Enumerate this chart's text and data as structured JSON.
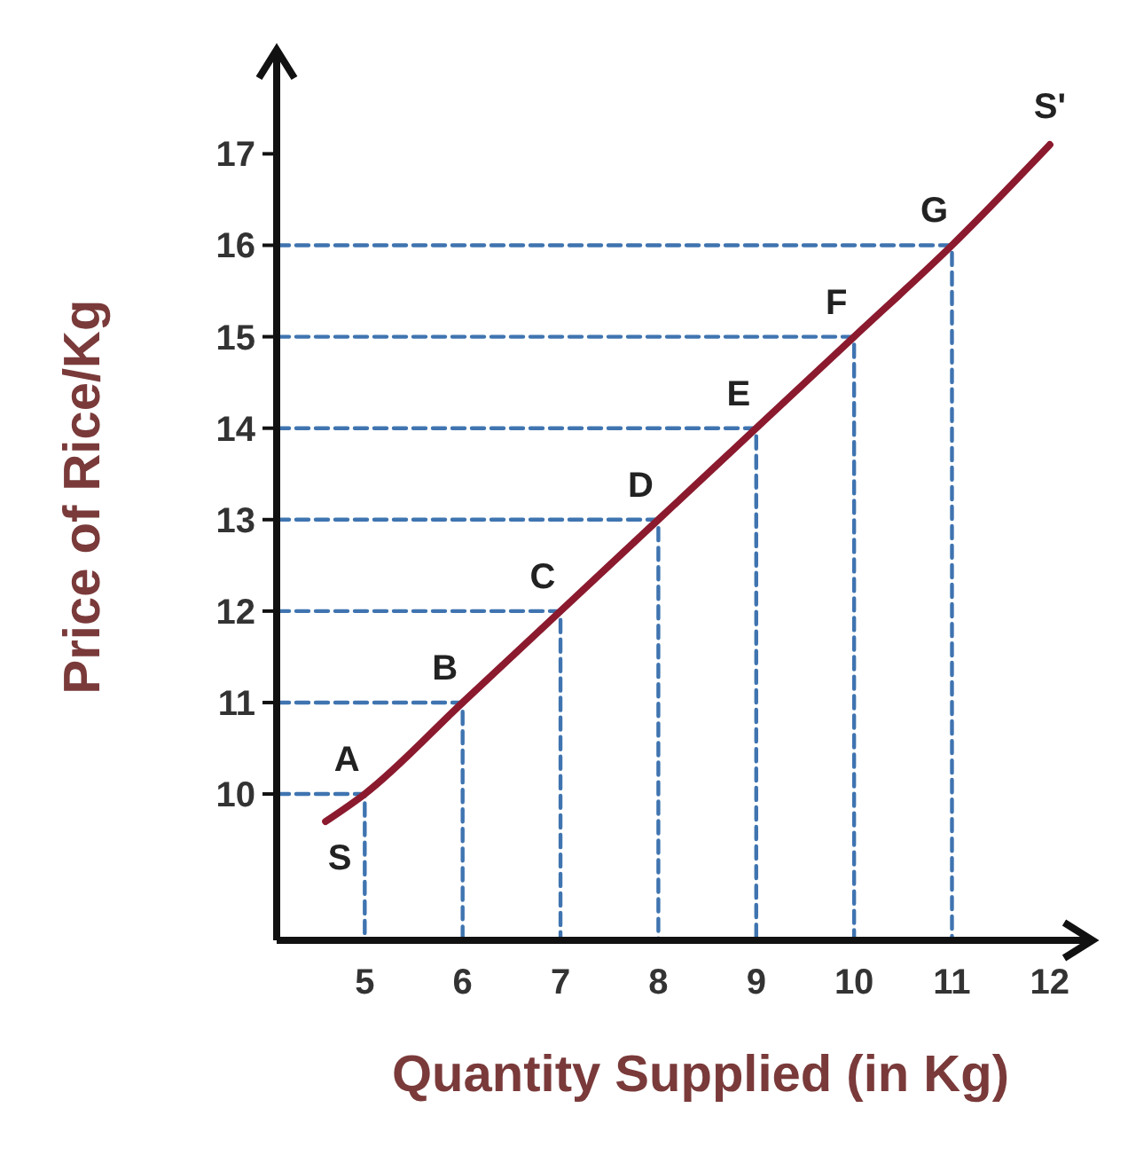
{
  "chart_data": {
    "type": "line",
    "xlabel": "Quantity Supplied (in Kg)",
    "ylabel": "Price of Rice/Kg",
    "xlim": [
      4.1,
      12.4
    ],
    "ylim": [
      8.4,
      18.1
    ],
    "xticks": [
      5,
      6,
      7,
      8,
      9,
      10,
      11,
      12
    ],
    "yticks": [
      10,
      11,
      12,
      13,
      14,
      15,
      16,
      17
    ],
    "grid": false,
    "marker": "none",
    "series": [
      {
        "x": [
          4.1,
          5,
          5
        ],
        "values": [
          10,
          10,
          8.4
        ],
        "color": "#3f74b0",
        "line_style": "dashed"
      },
      {
        "x": [
          4.1,
          6,
          6
        ],
        "values": [
          11,
          11,
          8.4
        ],
        "color": "#3f74b0",
        "line_style": "dashed"
      },
      {
        "x": [
          4.1,
          7,
          7
        ],
        "values": [
          12,
          12,
          8.4
        ],
        "color": "#3f74b0",
        "line_style": "dashed"
      },
      {
        "x": [
          4.1,
          8,
          8
        ],
        "values": [
          13,
          13,
          8.4
        ],
        "color": "#3f74b0",
        "line_style": "dashed"
      },
      {
        "x": [
          4.1,
          9,
          9
        ],
        "values": [
          14,
          14,
          8.4
        ],
        "color": "#3f74b0",
        "line_style": "dashed"
      },
      {
        "x": [
          4.1,
          10,
          10
        ],
        "values": [
          15,
          15,
          8.4
        ],
        "color": "#3f74b0",
        "line_style": "dashed"
      },
      {
        "x": [
          4.1,
          11,
          11
        ],
        "values": [
          16,
          16,
          8.4
        ],
        "color": "#3f74b0",
        "line_style": "dashed"
      },
      {
        "x": [
          4.6,
          5,
          6,
          7,
          8,
          9,
          10,
          11,
          12
        ],
        "values": [
          9.7,
          10,
          11,
          12,
          13,
          14,
          15,
          16,
          17.1
        ],
        "color": "#8b1a2e",
        "line_style": "solid"
      }
    ],
    "annotations": [
      {
        "text": "A",
        "x": 5,
        "y": 10
      },
      {
        "text": "B",
        "x": 6,
        "y": 11
      },
      {
        "text": "C",
        "x": 7,
        "y": 12
      },
      {
        "text": "D",
        "x": 8,
        "y": 13
      },
      {
        "text": "E",
        "x": 9,
        "y": 14
      },
      {
        "text": "F",
        "x": 10,
        "y": 15
      },
      {
        "text": "G",
        "x": 11,
        "y": 16
      },
      {
        "text": "S",
        "x": 4.6,
        "y": 9.7
      },
      {
        "text": "S'",
        "x": 12,
        "y": 17.1
      }
    ]
  }
}
